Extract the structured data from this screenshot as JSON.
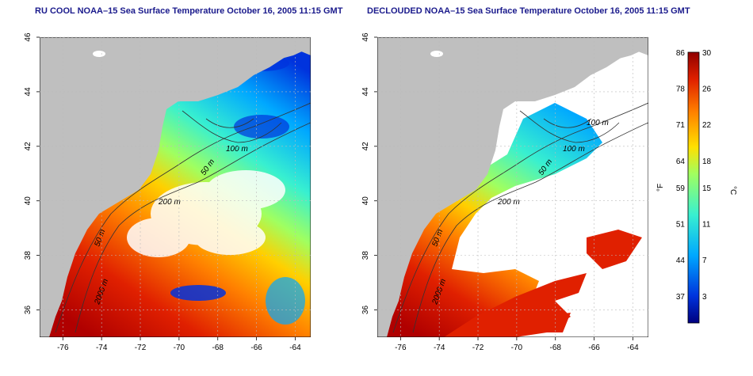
{
  "panels": [
    {
      "title": "RU COOL NOAA–15 Sea Surface Temperature October 16, 2005 11:15 GMT",
      "contour_labels": [
        "100 m",
        "50 m",
        "200 m",
        "50 m",
        "2000 m"
      ]
    },
    {
      "title": "DECLOUDED NOAA–15 Sea Surface Temperature October 16, 2005 11:15 GMT",
      "contour_labels": [
        "100 m",
        "100 m",
        "50 m",
        "200 m",
        "50 m",
        "2000 m"
      ]
    }
  ],
  "axes": {
    "x_ticks": [
      "-76",
      "-74",
      "-72",
      "-70",
      "-68",
      "-66",
      "-64"
    ],
    "y_ticks": [
      "46",
      "44",
      "42",
      "40",
      "38",
      "36"
    ],
    "x_values": [
      -76,
      -74,
      -72,
      -70,
      -68,
      -66,
      -64
    ],
    "y_values": [
      46,
      44,
      42,
      40,
      38,
      36
    ],
    "lon_range": [
      -77.2,
      -63.2
    ],
    "lat_range": [
      35,
      46
    ]
  },
  "colorbar": {
    "fahrenheit_unit": "°F",
    "celsius_unit": "°C",
    "fahrenheit_ticks": [
      "86",
      "78",
      "71",
      "64",
      "59",
      "51",
      "44",
      "37"
    ],
    "celsius_ticks": [
      "30",
      "26",
      "22",
      "18",
      "15",
      "11",
      "7",
      "3"
    ],
    "celsius_range": [
      0,
      30
    ],
    "colors": [
      "#00007f",
      "#0033dd",
      "#00a8ff",
      "#38f0d0",
      "#a0ff60",
      "#ffe000",
      "#ff8000",
      "#e02000",
      "#900000"
    ]
  },
  "colors": {
    "land": "#bfbfbf",
    "cloud": "#ffffff",
    "title": "#1a1a8c"
  }
}
